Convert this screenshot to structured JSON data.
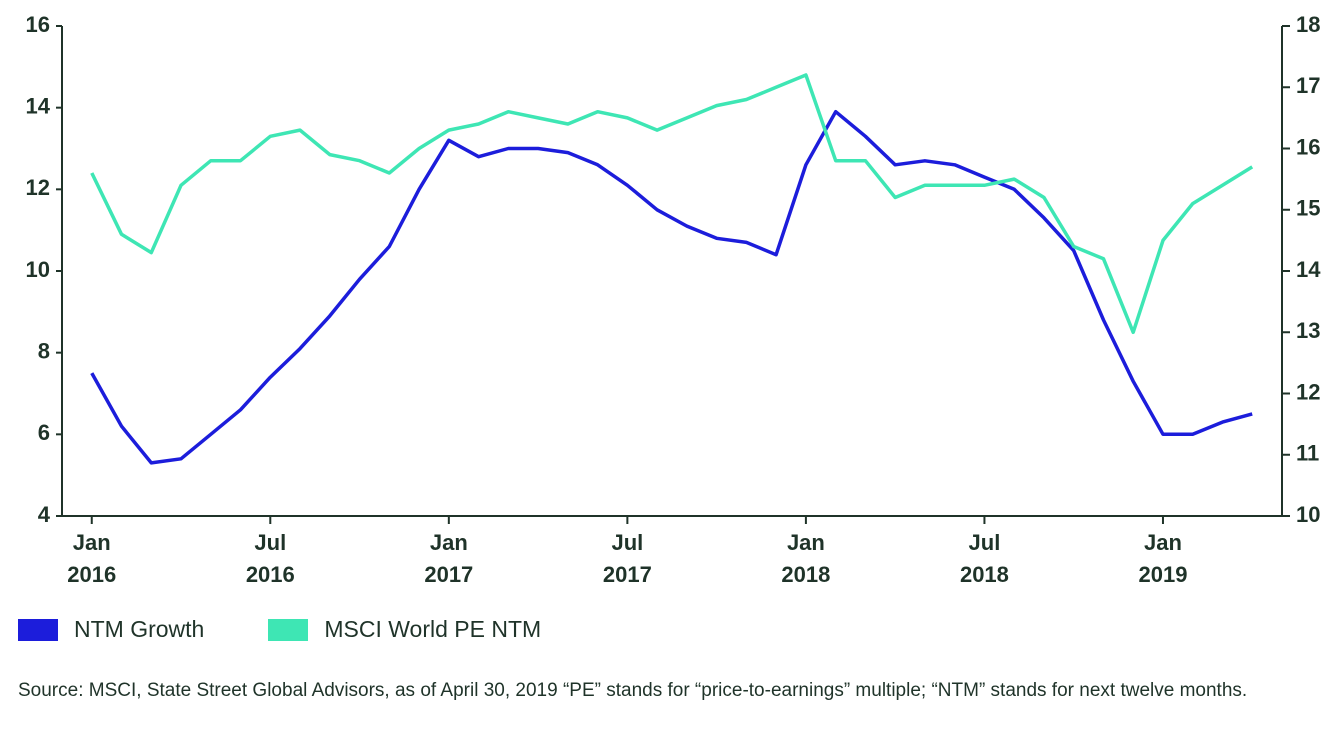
{
  "chart_data": {
    "type": "line",
    "x": [
      "2016-01",
      "2016-02",
      "2016-03",
      "2016-04",
      "2016-05",
      "2016-06",
      "2016-07",
      "2016-08",
      "2016-09",
      "2016-10",
      "2016-11",
      "2016-12",
      "2017-01",
      "2017-02",
      "2017-03",
      "2017-04",
      "2017-05",
      "2017-06",
      "2017-07",
      "2017-08",
      "2017-09",
      "2017-10",
      "2017-11",
      "2017-12",
      "2018-01",
      "2018-02",
      "2018-03",
      "2018-04",
      "2018-05",
      "2018-06",
      "2018-07",
      "2018-08",
      "2018-09",
      "2018-10",
      "2018-11",
      "2018-12",
      "2019-01",
      "2019-02",
      "2019-03",
      "2019-04"
    ],
    "series": [
      {
        "name": "NTM Growth",
        "color": "#1c1ddb",
        "axis": "y",
        "values": [
          7.5,
          6.2,
          5.3,
          5.4,
          6.0,
          6.6,
          7.4,
          8.1,
          8.9,
          9.8,
          10.6,
          12.0,
          13.2,
          12.8,
          13.0,
          13.0,
          12.9,
          12.6,
          12.1,
          11.5,
          11.1,
          10.8,
          10.7,
          10.4,
          12.6,
          13.9,
          13.3,
          12.6,
          12.7,
          12.6,
          12.3,
          12.0,
          11.3,
          10.5,
          8.8,
          7.3,
          6.0,
          6.0,
          6.3,
          6.5
        ]
      },
      {
        "name": "MSCI World PE NTM",
        "color": "#3ee6b4",
        "axis": "y2",
        "values": [
          15.6,
          14.6,
          14.3,
          15.4,
          15.8,
          15.8,
          16.2,
          16.3,
          15.9,
          15.8,
          15.6,
          16.0,
          16.3,
          16.4,
          16.6,
          16.5,
          16.4,
          16.6,
          16.5,
          16.3,
          16.5,
          16.7,
          16.8,
          17.0,
          17.2,
          15.8,
          15.8,
          15.2,
          15.4,
          15.4,
          15.4,
          15.5,
          15.2,
          14.4,
          14.2,
          13.0,
          14.5,
          15.1,
          15.4,
          15.7
        ]
      }
    ],
    "xlim": [
      "2015-12",
      "2019-05"
    ],
    "xticks": [
      {
        "value": "2016-01",
        "label": [
          "Jan",
          "2016"
        ]
      },
      {
        "value": "2016-07",
        "label": [
          "Jul",
          "2016"
        ]
      },
      {
        "value": "2017-01",
        "label": [
          "Jan",
          "2017"
        ]
      },
      {
        "value": "2017-07",
        "label": [
          "Jul",
          "2017"
        ]
      },
      {
        "value": "2018-01",
        "label": [
          "Jan",
          "2018"
        ]
      },
      {
        "value": "2018-07",
        "label": [
          "Jul",
          "2018"
        ]
      },
      {
        "value": "2019-01",
        "label": [
          "Jan",
          "2019"
        ]
      }
    ],
    "ylim": [
      4,
      16
    ],
    "yticks": [
      4,
      6,
      8,
      10,
      12,
      14,
      16
    ],
    "y2lim": [
      10,
      18
    ],
    "y2ticks": [
      10,
      11,
      12,
      13,
      14,
      15,
      16,
      17,
      18
    ],
    "source": "Source: MSCI, State Street Global Advisors, as of April 30, 2019 “PE” stands for “price-to-earnings” multiple; “NTM” stands for next twelve months."
  }
}
